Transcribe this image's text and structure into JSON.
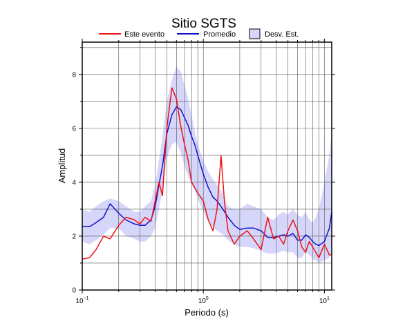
{
  "chart_data": {
    "type": "line",
    "title": "Sitio SGTS",
    "xlabel": "Periodo (s)",
    "ylabel": "Amplitud",
    "xscale": "log",
    "xlim": [
      0.1,
      11.5
    ],
    "ylim": [
      0,
      9.2
    ],
    "grid": true,
    "legend_position": "top",
    "y_ticks": [
      "0",
      "2",
      "4",
      "6",
      "8"
    ],
    "x_ticks": [
      {
        "base": "10",
        "exp": "−1",
        "value": 0.1
      },
      {
        "base": "10",
        "exp": "0",
        "value": 1
      },
      {
        "base": "10",
        "exp": "1",
        "value": 10
      }
    ],
    "legend": {
      "event_label": "Este evento",
      "mean_label": "Promedio",
      "std_label": "Desv. Est."
    },
    "colors": {
      "event": "#ee1111",
      "mean": "#1111cc",
      "std_fill": "#d6d6fb"
    },
    "x": [
      0.1,
      0.115,
      0.13,
      0.15,
      0.17,
      0.2,
      0.23,
      0.27,
      0.3,
      0.33,
      0.37,
      0.4,
      0.43,
      0.46,
      0.5,
      0.55,
      0.6,
      0.65,
      0.7,
      0.75,
      0.8,
      0.85,
      0.9,
      1.0,
      1.1,
      1.2,
      1.3,
      1.4,
      1.5,
      1.6,
      1.8,
      2.0,
      2.3,
      2.6,
      3.0,
      3.4,
      3.8,
      4.2,
      4.6,
      5.0,
      5.5,
      6.0,
      6.5,
      7.0,
      7.5,
      8.0,
      8.5,
      9.0,
      10.0,
      11.0,
      11.5
    ],
    "series": [
      {
        "name": "Promedio",
        "values": [
          2.35,
          2.35,
          2.5,
          2.7,
          3.2,
          2.85,
          2.6,
          2.45,
          2.4,
          2.4,
          2.6,
          3.1,
          3.9,
          4.6,
          5.8,
          6.5,
          6.8,
          6.7,
          6.4,
          6.1,
          5.7,
          5.4,
          5.0,
          4.3,
          3.8,
          3.45,
          3.3,
          3.1,
          2.9,
          2.7,
          2.4,
          2.25,
          2.3,
          2.3,
          2.2,
          1.95,
          1.95,
          2.0,
          2.05,
          2.0,
          2.1,
          1.85,
          1.85,
          2.05,
          1.95,
          1.8,
          1.7,
          1.65,
          1.8,
          2.3,
          2.9
        ]
      },
      {
        "name": "Este evento",
        "values": [
          1.15,
          1.2,
          1.5,
          2.0,
          1.9,
          2.4,
          2.7,
          2.6,
          2.45,
          2.7,
          2.55,
          3.3,
          4.0,
          3.5,
          6.0,
          7.5,
          7.1,
          6.1,
          5.4,
          4.8,
          4.0,
          3.8,
          3.6,
          3.3,
          2.6,
          2.2,
          3.0,
          5.0,
          3.2,
          2.2,
          1.7,
          2.0,
          2.2,
          1.9,
          1.5,
          2.7,
          1.9,
          2.0,
          1.7,
          2.2,
          2.6,
          2.2,
          1.6,
          1.4,
          1.8,
          1.6,
          1.4,
          1.2,
          1.7,
          1.3,
          1.3
        ]
      }
    ],
    "std_band": {
      "lower": [
        1.8,
        1.7,
        1.85,
        2.05,
        2.3,
        2.3,
        2.0,
        1.9,
        1.8,
        1.8,
        2.0,
        2.3,
        3.0,
        3.7,
        4.9,
        5.4,
        5.5,
        5.1,
        4.6,
        4.2,
        3.9,
        3.7,
        3.4,
        2.9,
        2.55,
        2.35,
        2.2,
        2.1,
        2.0,
        1.85,
        1.7,
        1.6,
        1.6,
        1.55,
        1.45,
        1.35,
        1.35,
        1.4,
        1.45,
        1.4,
        1.4,
        1.2,
        1.2,
        1.4,
        1.3,
        1.15,
        1.1,
        1.0,
        1.1,
        1.2,
        1.4
      ],
      "upper": [
        3.0,
        2.9,
        3.1,
        3.3,
        3.4,
        3.3,
        3.1,
        2.9,
        2.9,
        3.1,
        3.3,
        3.9,
        4.8,
        5.7,
        7.0,
        7.8,
        8.3,
        8.1,
        7.6,
        7.1,
        6.5,
        5.9,
        5.4,
        4.8,
        4.4,
        4.1,
        3.9,
        3.7,
        3.4,
        3.1,
        3.0,
        3.0,
        3.2,
        3.1,
        3.0,
        2.7,
        2.6,
        2.8,
        2.9,
        2.8,
        3.0,
        2.8,
        2.7,
        2.9,
        2.6,
        2.5,
        2.7,
        3.0,
        4.0,
        5.0,
        5.9
      ]
    }
  }
}
